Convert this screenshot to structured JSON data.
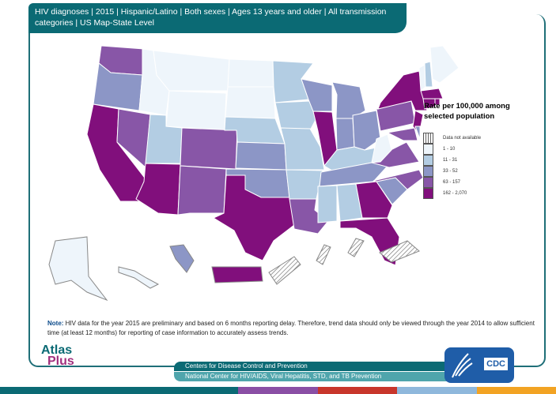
{
  "title": "HIV diagnoses | 2015 | Hispanic/Latino | Both sexes | Ages 13 years and older | All transmission categories | US Map-State Level",
  "legend": {
    "title": "Rate per 100,000 among selected population",
    "items": [
      {
        "label": "Data not available",
        "color": "hatch"
      },
      {
        "label": "1 - 10",
        "color": "#eef5fb"
      },
      {
        "label": "11 - 31",
        "color": "#b3cde3"
      },
      {
        "label": "33 - 52",
        "color": "#8c96c6"
      },
      {
        "label": "63 - 157",
        "color": "#8856a7"
      },
      {
        "label": "162 - 2,070",
        "color": "#810f7c"
      }
    ]
  },
  "states": {
    "WA": 4,
    "OR": 3,
    "CA": 5,
    "NV": 4,
    "ID": 1,
    "MT": 1,
    "WY": 1,
    "UT": 2,
    "CO": 4,
    "AZ": 5,
    "NM": 4,
    "ND": 1,
    "SD": 1,
    "NE": 2,
    "KS": 3,
    "OK": 3,
    "TX": 5,
    "MN": 2,
    "IA": 2,
    "MO": 2,
    "AR": 2,
    "LA": 4,
    "WI": 3,
    "IL": 5,
    "MI": 3,
    "IN": 3,
    "OH": 3,
    "KY": 2,
    "TN": 3,
    "MS": 2,
    "AL": 2,
    "GA": 5,
    "FL": 5,
    "SC": 3,
    "NC": 4,
    "VA": 4,
    "WV": 1,
    "PA": 4,
    "NY": 5,
    "NJ": 5,
    "MD": 4,
    "DE": 3,
    "VT": 1,
    "NH": 2,
    "ME": 1,
    "MA": 5,
    "CT": 5,
    "RI": 5,
    "AK": 1,
    "HI": 1,
    "DC": 3,
    "PR": 5,
    "GU": 0,
    "VI": 0,
    "AS": 0,
    "MP": 0
  },
  "note": {
    "label": "Note:",
    "text": " HIV data for the year 2015 are preliminary and based on 6 months reporting delay. Therefore, trend data should only be viewed through the year 2014 to allow sufficient time (at least 12 months) for reporting of case information to accurately assess trends."
  },
  "logo": {
    "line1": "Atlas",
    "line2": "Plus"
  },
  "footer": {
    "line1": "Centers for Disease Control and Prevention",
    "line2": "National Center for HIV/AIDS, Viral Hepatitis, STD, and TB Prevention"
  },
  "cdc_logo": "CDC",
  "bottom_bar_colors": [
    "#0b6a74",
    "#0b6a74",
    "#0b6a74",
    "#8a4fa5",
    "#c8362b",
    "#8fb8dc",
    "#f2a323"
  ]
}
